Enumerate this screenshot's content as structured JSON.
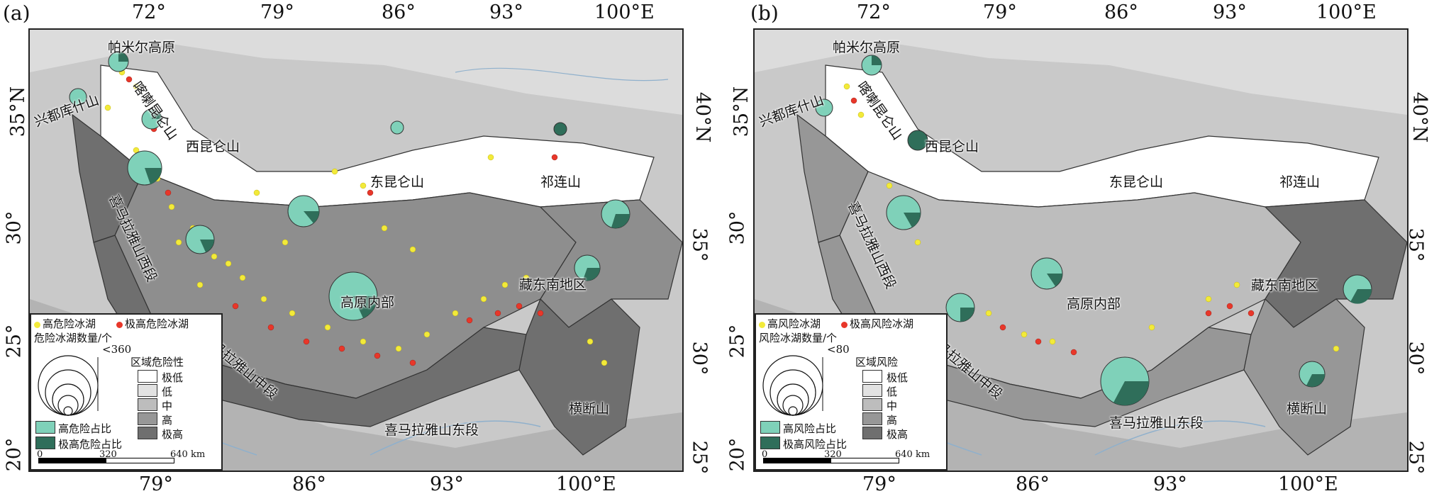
{
  "panels": [
    {
      "label": "(a)",
      "top_lon_ticks": [
        "72°",
        "79°",
        "86°",
        "93°",
        "100°E"
      ],
      "bottom_lon_ticks": [
        "79°",
        "86°",
        "93°",
        "100°E"
      ],
      "left_lat_ticks": [
        "35°N",
        "30°",
        "25°",
        "20°"
      ],
      "right_lat_ticks": [
        "40°N",
        "35°",
        "30°",
        "25°"
      ],
      "regions": [
        "帕米尔高原",
        "兴都库什山",
        "喀喇昆仑山",
        "西昆仑山",
        "东昆仑山",
        "祁连山",
        "喜马拉雅山西段",
        "高原内部",
        "藏东南地区",
        "喜马拉雅山中段",
        "喜马拉雅山东段",
        "横断山"
      ],
      "legend": {
        "point_high": "高危险冰湖",
        "point_extreme": "极高危险冰湖",
        "count_title": "危险冰湖数量/个",
        "count_max": "<360",
        "pie_high": "高危险占比",
        "pie_extreme": "极高危险占比",
        "class_title": "区域危险性",
        "classes": [
          "极低",
          "低",
          "中",
          "高",
          "极高"
        ],
        "scale": [
          "0",
          "320",
          "640 km"
        ]
      }
    },
    {
      "label": "(b)",
      "top_lon_ticks": [
        "72°",
        "79°",
        "86°",
        "93°",
        "100°E"
      ],
      "bottom_lon_ticks": [
        "79°",
        "86°",
        "93°",
        "100°E"
      ],
      "left_lat_ticks": [
        "35°N",
        "30°",
        "25°",
        "20°"
      ],
      "right_lat_ticks": [
        "40°N",
        "35°",
        "30°",
        "25°"
      ],
      "regions": [
        "帕米尔高原",
        "兴都库什山",
        "喀喇昆仑山",
        "西昆仑山",
        "东昆仑山",
        "祁连山",
        "喜马拉雅山西段",
        "高原内部",
        "藏东南地区",
        "喜马拉雅山中段",
        "喜马拉雅山东段",
        "横断山"
      ],
      "legend": {
        "point_high": "高风险冰湖",
        "point_extreme": "极高风险冰湖",
        "count_title": "风险冰湖数量/个",
        "count_max": "<80",
        "pie_high": "高风险占比",
        "pie_extreme": "极高风险占比",
        "class_title": "区域风险",
        "classes": [
          "极低",
          "低",
          "中",
          "高",
          "极高"
        ],
        "scale": [
          "0",
          "320",
          "640 km"
        ]
      }
    }
  ],
  "colors": {
    "high_point": "#f2ea3a",
    "extreme_point": "#e8372a",
    "pie_high": "#7fd1b9",
    "pie_extreme": "#2f6e5a",
    "class_colors": [
      "#ffffff",
      "#e2e2e2",
      "#bdbdbd",
      "#979797",
      "#6f6f6f"
    ]
  }
}
